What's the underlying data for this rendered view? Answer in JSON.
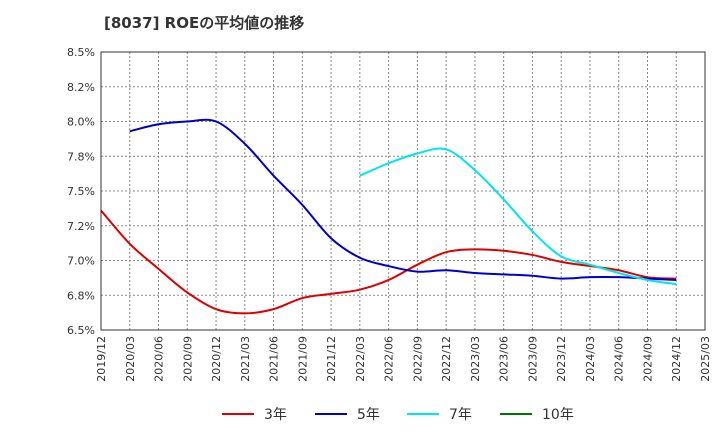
{
  "chart_data": {
    "type": "line",
    "title": "[8037]  ROEの平均値の推移",
    "xlabel": "",
    "ylabel": "",
    "ylim": [
      6.5,
      8.5
    ],
    "yticks": [
      "6.5%",
      "6.8%",
      "7.0%",
      "7.2%",
      "7.5%",
      "7.8%",
      "8.0%",
      "8.2%",
      "8.5%"
    ],
    "categories": [
      "2019/12",
      "2020/03",
      "2020/06",
      "2020/09",
      "2020/12",
      "2021/03",
      "2021/06",
      "2021/09",
      "2021/12",
      "2022/03",
      "2022/06",
      "2022/09",
      "2022/12",
      "2023/03",
      "2023/06",
      "2023/09",
      "2023/12",
      "2024/03",
      "2024/06",
      "2024/09",
      "2024/12",
      "2025/03"
    ],
    "series": [
      {
        "name": "3年",
        "color": "#dd0000",
        "values": [
          7.36,
          7.12,
          6.94,
          6.77,
          6.65,
          6.62,
          6.65,
          6.73,
          6.76,
          6.79,
          6.86,
          6.97,
          7.06,
          7.08,
          7.07,
          7.04,
          6.99,
          6.96,
          6.93,
          6.88,
          6.87,
          null
        ]
      },
      {
        "name": "5年",
        "color": "#0000cc",
        "values": [
          null,
          7.93,
          7.98,
          8.0,
          8.0,
          7.84,
          7.61,
          7.4,
          7.16,
          7.02,
          6.96,
          6.92,
          6.93,
          6.91,
          6.9,
          6.89,
          6.87,
          6.88,
          6.88,
          6.87,
          6.86,
          null
        ]
      },
      {
        "name": "7年",
        "color": "#00e5ee",
        "values": [
          null,
          null,
          null,
          null,
          null,
          null,
          null,
          null,
          null,
          7.61,
          7.7,
          7.77,
          7.8,
          7.65,
          7.44,
          7.21,
          7.03,
          6.97,
          6.91,
          6.86,
          6.83,
          null
        ]
      },
      {
        "name": "10年",
        "color": "#007700",
        "values": [
          null,
          null,
          null,
          null,
          null,
          null,
          null,
          null,
          null,
          null,
          null,
          null,
          null,
          null,
          null,
          null,
          null,
          null,
          null,
          null,
          null,
          null
        ]
      }
    ],
    "legend": "bottom",
    "grid": true
  }
}
